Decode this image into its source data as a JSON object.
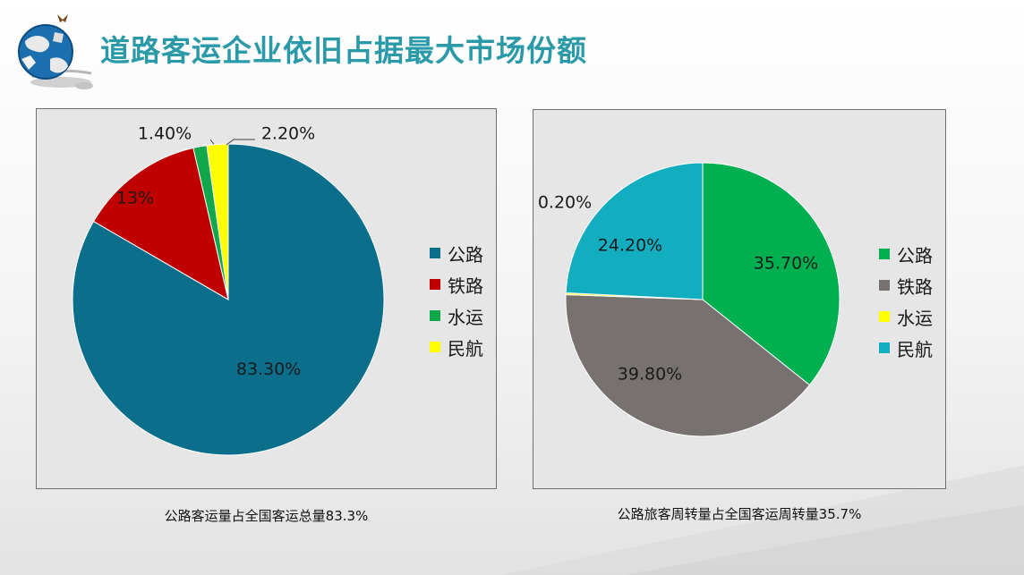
{
  "title": "道路客运企业依旧占据最大市场份额",
  "colors": {
    "title": "#2a9aa9",
    "chart_background": "#e6e6e6"
  },
  "captions": [
    "公路客运量占全国客运总量83.3%",
    "公路旅客周转量占全国客运周转量35.7%"
  ],
  "chart_data": [
    {
      "type": "pie",
      "labels": [
        "公路",
        "铁路",
        "水运",
        "民航"
      ],
      "values": [
        83.3,
        13,
        1.4,
        2.2
      ],
      "data_labels": [
        "83.30%",
        "13%",
        "1.40%",
        "2.20%"
      ],
      "colors": [
        "#0b6f8c",
        "#c00000",
        "#11a84b",
        "#ffff00"
      ],
      "legend_position": "right"
    },
    {
      "type": "pie",
      "labels": [
        "公路",
        "铁路",
        "水运",
        "民航"
      ],
      "values": [
        35.7,
        39.8,
        0.2,
        24.2
      ],
      "data_labels": [
        "35.70%",
        "39.80%",
        "0.20%",
        "24.20%"
      ],
      "colors": [
        "#00b050",
        "#777270",
        "#ffff00",
        "#12adbf"
      ],
      "legend_position": "right"
    }
  ]
}
